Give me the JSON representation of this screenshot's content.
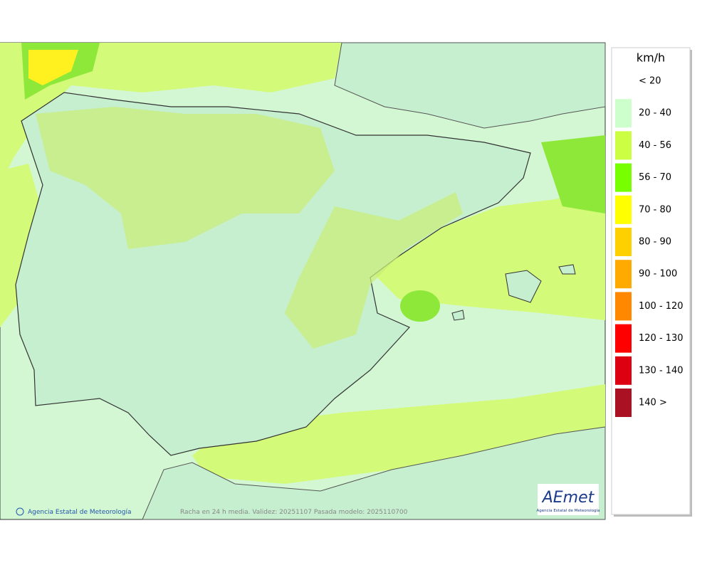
{
  "legend": {
    "title": "km/h",
    "items": [
      {
        "label": "< 20",
        "color": "#ffffff"
      },
      {
        "label": "20 - 40",
        "color": "#ccffcc"
      },
      {
        "label": "40 - 56",
        "color": "#ccff44"
      },
      {
        "label": "56 - 70",
        "color": "#77ff00"
      },
      {
        "label": "70 - 80",
        "color": "#ffff00"
      },
      {
        "label": "80 - 90",
        "color": "#ffd000"
      },
      {
        "label": "90 - 100",
        "color": "#ffaa00"
      },
      {
        "label": "100 - 120",
        "color": "#ff8800"
      },
      {
        "label": "120 - 130",
        "color": "#ff0000"
      },
      {
        "label": "130 - 140",
        "color": "#dd0011"
      },
      {
        "label": "140 >",
        "color": "#aa1122"
      }
    ]
  },
  "footer": {
    "credit": "Agencia Estatal de Meteorología",
    "caption": "Racha en 24 h media. Validez: 20251107 Pasada modelo: 2025110700"
  },
  "logo": {
    "name": "AEmet",
    "subtitle": "Agencia Estatal de Meteorología"
  }
}
